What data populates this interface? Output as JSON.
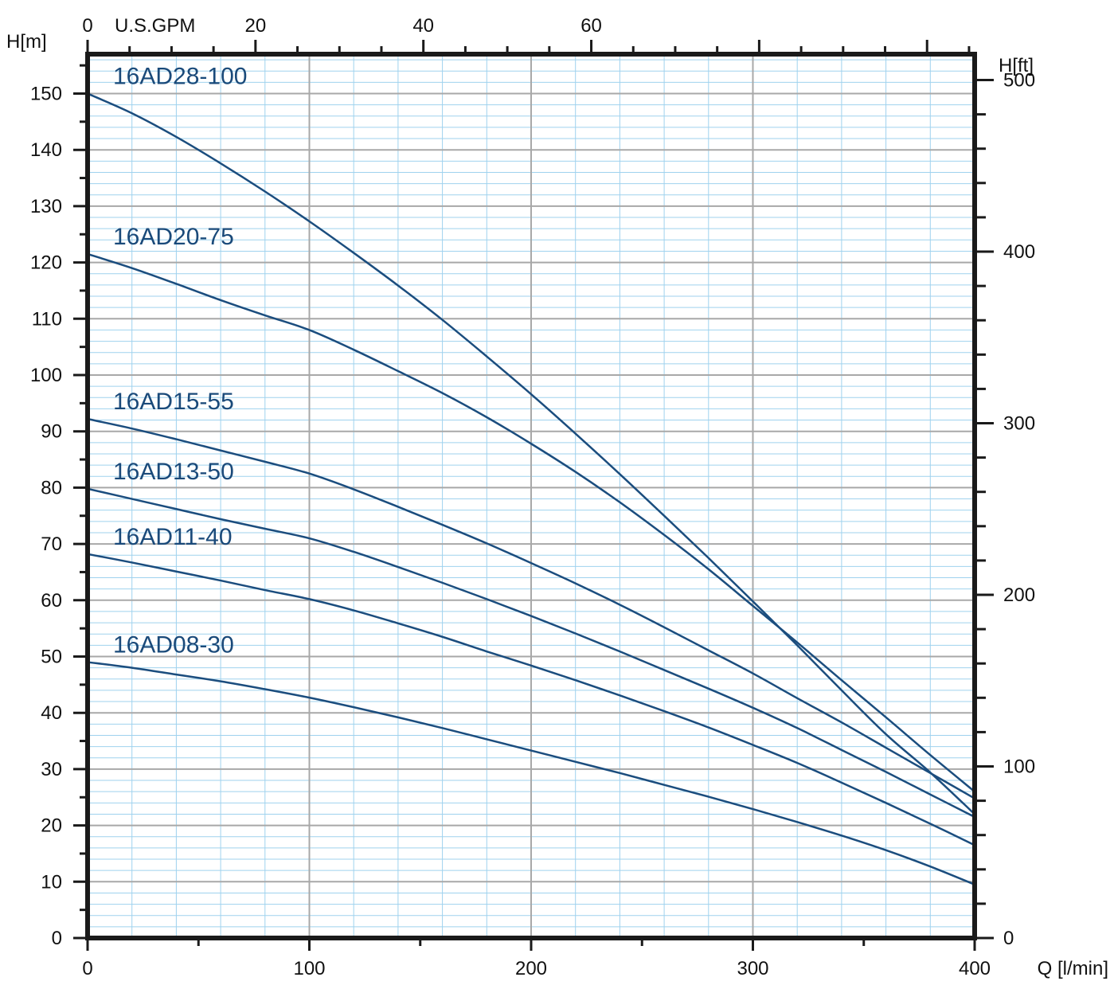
{
  "chart_data": {
    "type": "line",
    "xlabel": "Q [l/min]",
    "ylabel": "H[m]",
    "y2label": "H[ft]",
    "x2label": "U.S.GPM",
    "xlim": [
      0,
      400
    ],
    "ylim": [
      0,
      157
    ],
    "x_ticks": [
      0,
      100,
      200,
      300,
      400
    ],
    "y_ticks": [
      0,
      10,
      20,
      30,
      40,
      50,
      60,
      70,
      80,
      90,
      100,
      110,
      120,
      130,
      140,
      150
    ],
    "y2_ticks": [
      0,
      100,
      200,
      300,
      400,
      500
    ],
    "x2_ticks": [
      0,
      20,
      40,
      60
    ],
    "grid": true,
    "series": [
      {
        "name": "16AD28-100",
        "x": [
          0,
          20,
          40,
          60,
          80,
          100,
          120,
          140,
          160,
          180,
          200,
          220,
          240,
          260,
          280,
          300,
          320,
          340,
          360,
          380,
          400
        ],
        "y": [
          150,
          146.5,
          142.3,
          137.6,
          132.6,
          127.3,
          121.7,
          115.9,
          109.8,
          103.3,
          96.6,
          89.6,
          82.4,
          75.0,
          67.5,
          59.8,
          52.0,
          44.0,
          36.2,
          29.4,
          22.0
        ]
      },
      {
        "name": "16AD20-75",
        "x": [
          0,
          20,
          40,
          60,
          80,
          100,
          120,
          140,
          160,
          180,
          200,
          220,
          240,
          260,
          280,
          300,
          320,
          340,
          360,
          380,
          400
        ],
        "y": [
          121.5,
          119.0,
          116.2,
          113.3,
          110.6,
          108.0,
          104.5,
          100.7,
          96.8,
          92.5,
          87.8,
          82.8,
          77.4,
          71.6,
          65.5,
          59.0,
          52.5,
          45.8,
          39.2,
          32.5,
          26.0
        ]
      },
      {
        "name": "16AD15-55",
        "x": [
          0,
          20,
          40,
          60,
          80,
          100,
          120,
          140,
          160,
          180,
          200,
          220,
          240,
          260,
          280,
          300,
          320,
          340,
          360,
          380,
          400
        ],
        "y": [
          92.2,
          90.5,
          88.6,
          86.6,
          84.6,
          82.5,
          79.7,
          76.6,
          73.4,
          70.1,
          66.6,
          63.0,
          59.2,
          55.2,
          51.1,
          47.0,
          42.6,
          38.3,
          33.8,
          29.3,
          24.8
        ]
      },
      {
        "name": "16AD13-50",
        "x": [
          0,
          20,
          40,
          60,
          80,
          100,
          120,
          140,
          160,
          180,
          200,
          220,
          240,
          260,
          280,
          300,
          320,
          340,
          360,
          380,
          400
        ],
        "y": [
          79.8,
          78.0,
          76.2,
          74.4,
          72.7,
          71.0,
          68.6,
          65.9,
          63.1,
          60.2,
          57.2,
          54.1,
          50.9,
          47.6,
          44.3,
          40.9,
          37.3,
          33.4,
          29.5,
          25.5,
          21.5
        ]
      },
      {
        "name": "16AD11-40",
        "x": [
          0,
          20,
          40,
          60,
          80,
          100,
          120,
          140,
          160,
          180,
          200,
          220,
          240,
          260,
          280,
          300,
          320,
          340,
          360,
          380,
          400
        ],
        "y": [
          68.2,
          66.7,
          65.1,
          63.5,
          61.8,
          60.2,
          58.2,
          55.9,
          53.5,
          50.9,
          48.4,
          45.8,
          43.1,
          40.3,
          37.4,
          34.3,
          31.1,
          27.6,
          24.0,
          20.3,
          16.5
        ]
      },
      {
        "name": "16AD08-30",
        "x": [
          0,
          20,
          40,
          60,
          80,
          100,
          120,
          140,
          160,
          180,
          200,
          220,
          240,
          260,
          280,
          300,
          320,
          340,
          360,
          380,
          400
        ],
        "y": [
          49.0,
          48.0,
          46.8,
          45.6,
          44.2,
          42.7,
          41.0,
          39.2,
          37.3,
          35.3,
          33.3,
          31.3,
          29.3,
          27.2,
          25.1,
          22.9,
          20.6,
          18.2,
          15.6,
          12.7,
          9.5
        ]
      }
    ]
  }
}
